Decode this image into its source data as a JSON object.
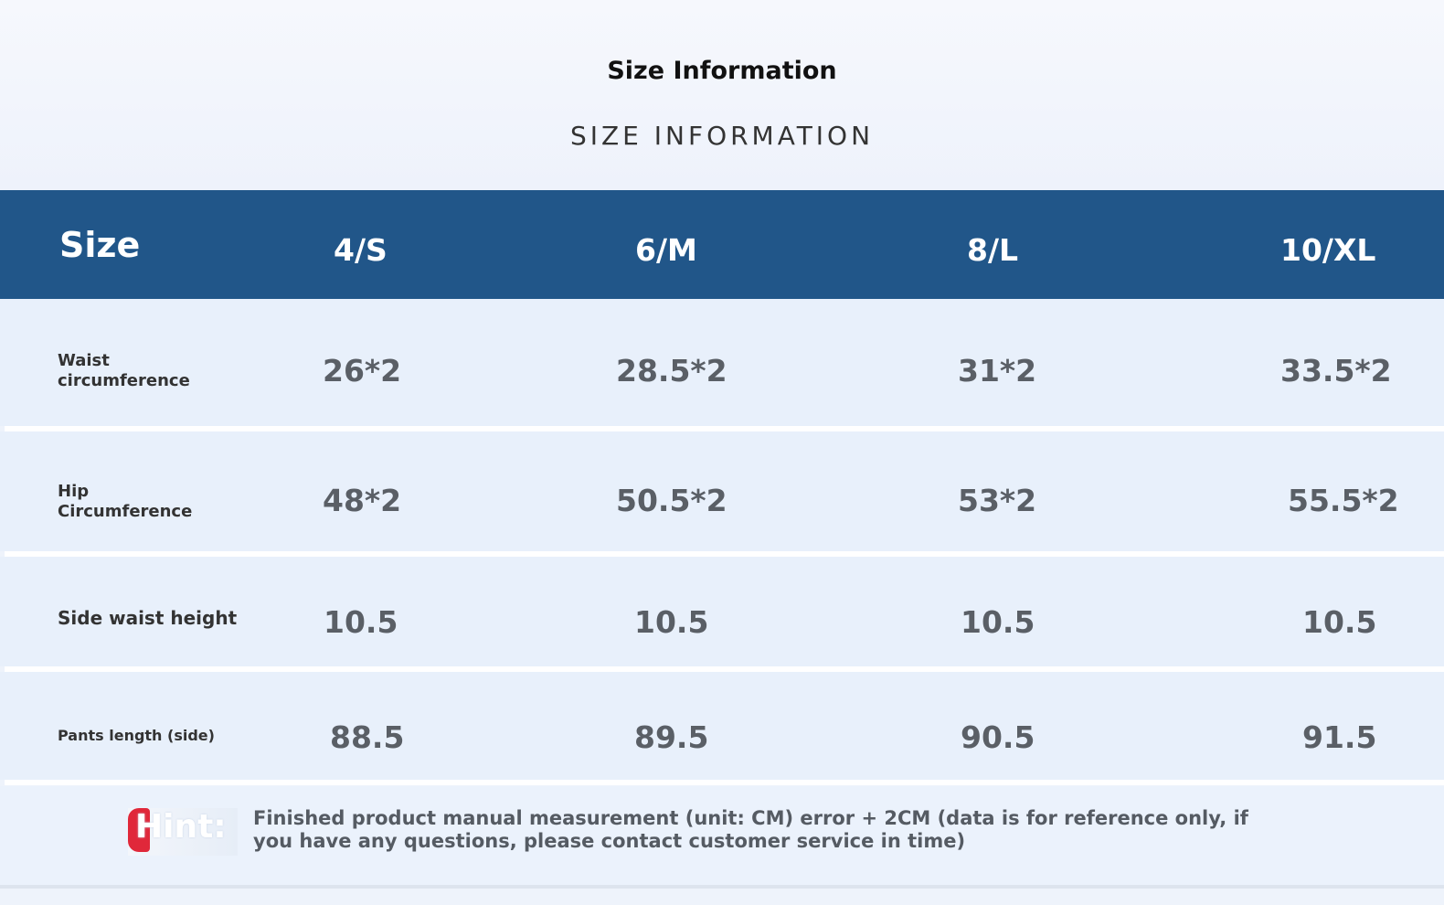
{
  "title": "Size Information",
  "subtitle": "SIZE INFORMATION",
  "table": {
    "header": [
      "Size",
      "4/S",
      "6/M",
      "8/L",
      "10/XL"
    ],
    "rows": [
      {
        "label_lines": [
          "Waist",
          "circumference"
        ],
        "values": [
          "26*2",
          "28.5*2",
          "31*2",
          "33.5*2"
        ]
      },
      {
        "label_lines": [
          "Hip",
          "Circumference"
        ],
        "values": [
          "48*2",
          "50.5*2",
          "53*2",
          "55.5*2"
        ]
      },
      {
        "label_lines": [
          "Side waist height"
        ],
        "values": [
          "10.5",
          "10.5",
          "10.5",
          "10.5"
        ]
      },
      {
        "label_lines": [
          "Pants length (side)"
        ],
        "values": [
          "88.5",
          "89.5",
          "90.5",
          "91.5"
        ]
      }
    ]
  },
  "hint": {
    "label": "Hint:",
    "text": "Finished product manual measurement (unit: CM) error + 2CM (data is for reference only, if you have any questions, please contact customer service in time)"
  },
  "colors": {
    "header_bg": "#215689",
    "row_bg": "#e8f0fb",
    "hint_accent": "#e0283a"
  }
}
